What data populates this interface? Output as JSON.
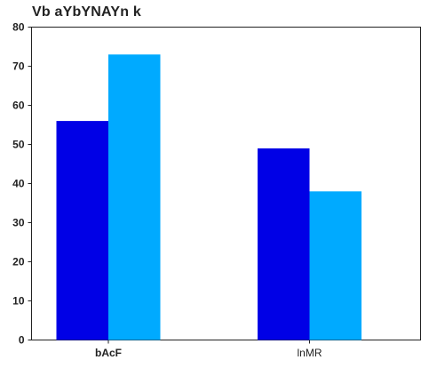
{
  "chart_data": {
    "type": "bar",
    "title": "Vb aYbYNAYn k",
    "xlabel": "",
    "ylabel": "",
    "categories": [
      "bAcF",
      "lnMR"
    ],
    "series": [
      {
        "values": [
          56,
          49
        ],
        "color": "#0000e6"
      },
      {
        "values": [
          73,
          38
        ],
        "color": "#00aaff"
      }
    ],
    "ylim": [
      0,
      80
    ],
    "yticks": [
      0,
      10,
      20,
      30,
      40,
      50,
      60,
      70,
      80
    ],
    "grid": false,
    "legend": "none"
  }
}
